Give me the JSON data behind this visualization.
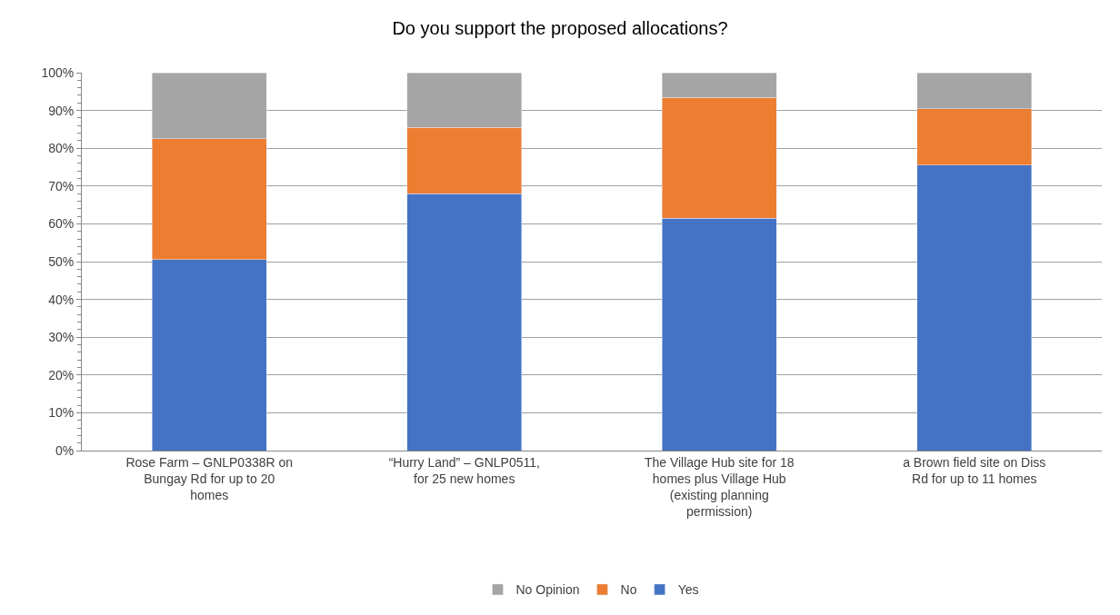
{
  "chart_data": {
    "type": "bar",
    "stacked": true,
    "title": "Do you support the proposed allocations?",
    "categories": [
      "Rose Farm – GNLP0338R on Bungay Rd for up to 20 homes",
      "“Hurry Land” – GNLP0511, for 25 new homes",
      "The Village Hub site for 18 homes plus Village Hub (existing planning permission)",
      "a Brown field site on Diss Rd for up to 11 homes"
    ],
    "series": [
      {
        "name": "Yes",
        "color": "#4472c4",
        "values": [
          50.5,
          68,
          61.5,
          75.5
        ]
      },
      {
        "name": "No",
        "color": "#ed7d31",
        "values": [
          32,
          17.5,
          32,
          15
        ]
      },
      {
        "name": "No Opinion",
        "color": "#a5a5a5",
        "values": [
          17.5,
          14.5,
          6.5,
          9.5
        ]
      }
    ],
    "ylim": [
      0,
      100
    ],
    "yticks": [
      {
        "value": 0,
        "label": "0%"
      },
      {
        "value": 10,
        "label": "10%"
      },
      {
        "value": 20,
        "label": "20%"
      },
      {
        "value": 30,
        "label": "30%"
      },
      {
        "value": 40,
        "label": "40%"
      },
      {
        "value": 50,
        "label": "50%"
      },
      {
        "value": 60,
        "label": "60%"
      },
      {
        "value": 70,
        "label": "70%"
      },
      {
        "value": 80,
        "label": "80%"
      },
      {
        "value": 90,
        "label": "90%"
      },
      {
        "value": 100,
        "label": "100%"
      }
    ],
    "grid": "y",
    "legend": "bottom"
  }
}
